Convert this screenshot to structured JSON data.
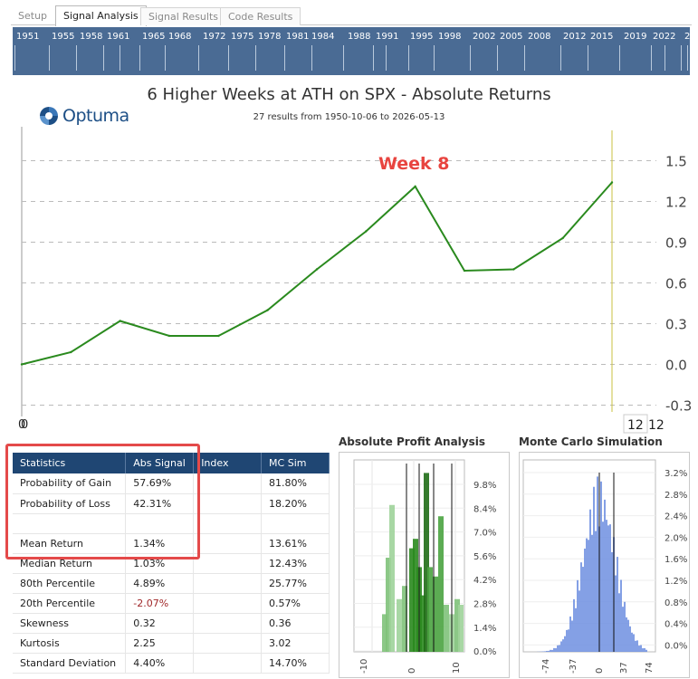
{
  "tabs": [
    {
      "label": "Setup",
      "active": false
    },
    {
      "label": "Signal Analysis",
      "active": true
    },
    {
      "label": "Signal Results",
      "active": false
    },
    {
      "label": "Code Results",
      "active": false
    }
  ],
  "timeline": {
    "years": [
      "1951",
      "1955",
      "1958",
      "1961",
      "1965",
      "1968",
      "1972",
      "1975",
      "1978",
      "1981",
      "1984",
      "1988",
      "1991",
      "1995",
      "1998",
      "2002",
      "2005",
      "2008",
      "2012",
      "2015",
      "2019",
      "2022",
      "2"
    ]
  },
  "chart": {
    "title": "6 Higher Weeks at ATH on SPX - Absolute Returns",
    "subtitle": "27 results from 1950-10-06 to 2026-05-13",
    "logo_text": "Optuma",
    "annotation": "Week 8",
    "x_start_label": "0",
    "x_end_label": "12",
    "x_end_label_extra": "12"
  },
  "chart_data": [
    {
      "type": "line",
      "title": "6 Higher Weeks at ATH on SPX - Absolute Returns",
      "x": [
        0,
        1,
        2,
        3,
        4,
        5,
        6,
        7,
        8,
        9,
        10,
        11,
        12
      ],
      "series": [
        {
          "values": [
            0.0,
            0.09,
            0.32,
            0.21,
            0.21,
            0.4,
            0.7,
            0.98,
            1.31,
            0.69,
            0.7,
            0.93,
            1.34
          ]
        }
      ],
      "ylim": [
        -0.35,
        1.75
      ],
      "yticks": [
        1.5,
        1.2,
        0.9,
        0.6,
        0.3,
        0.0,
        -0.3
      ],
      "grid": true,
      "color": "#2a8a1e",
      "marker_x": 12,
      "marker_color": "#c8c040"
    },
    {
      "type": "bar",
      "title": "Absolute Profit Analysis",
      "x": [
        -10,
        0,
        10
      ],
      "yticks": [
        "9.8%",
        "8.4%",
        "7.0%",
        "5.6%",
        "4.2%",
        "2.8%",
        "1.4%",
        "0.0%"
      ]
    },
    {
      "type": "area",
      "title": "Monte Carlo Simulation",
      "x": [
        -74,
        -37,
        0,
        37,
        74
      ],
      "yticks": [
        "3.2%",
        "2.8%",
        "2.4%",
        "2.0%",
        "1.6%",
        "1.2%",
        "0.8%",
        "0.4%",
        "0.0%"
      ]
    }
  ],
  "stats": {
    "headers": [
      "Statistics",
      "Abs Signal",
      "Index",
      "MC Sim"
    ],
    "rows": [
      {
        "label": "Probability of Gain",
        "abs": "57.69%",
        "index": "",
        "mc": "81.80%",
        "neg": false
      },
      {
        "label": "Probability of Loss",
        "abs": "42.31%",
        "index": "",
        "mc": "18.20%",
        "neg": false
      },
      {
        "label": "",
        "abs": "",
        "index": "",
        "mc": "",
        "neg": false
      },
      {
        "label": "Mean Return",
        "abs": "1.34%",
        "index": "",
        "mc": "13.61%",
        "neg": false
      },
      {
        "label": "Median Return",
        "abs": "1.03%",
        "index": "",
        "mc": "12.43%",
        "neg": false
      },
      {
        "label": "80th Percentile",
        "abs": "4.89%",
        "index": "",
        "mc": "25.77%",
        "neg": false
      },
      {
        "label": "20th Percentile",
        "abs": "-2.07%",
        "index": "",
        "mc": "0.57%",
        "neg": true
      },
      {
        "label": "Skewness",
        "abs": "0.32",
        "index": "",
        "mc": "0.36",
        "neg": false
      },
      {
        "label": "Kurtosis",
        "abs": "2.25",
        "index": "",
        "mc": "3.02",
        "neg": false
      },
      {
        "label": "Standard Deviation",
        "abs": "4.40%",
        "index": "",
        "mc": "14.70%",
        "neg": false
      }
    ]
  },
  "panels": {
    "profit_title": "Absolute Profit Analysis",
    "mc_title": "Monte Carlo Simulation"
  }
}
